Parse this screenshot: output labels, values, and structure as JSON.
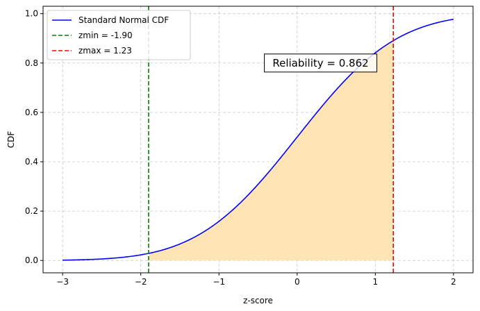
{
  "chart_data": {
    "type": "line",
    "title": "",
    "xlabel": "z-score",
    "ylabel": "CDF",
    "xlim": [
      -3.25,
      2.25
    ],
    "ylim": [
      -0.05,
      1.03
    ],
    "x_ticks": [
      -3,
      -2,
      -1,
      0,
      1,
      2
    ],
    "x_tick_labels": [
      "−3",
      "−2",
      "−1",
      "0",
      "1",
      "2"
    ],
    "y_ticks": [
      0.0,
      0.2,
      0.4,
      0.6,
      0.8,
      1.0
    ],
    "y_tick_labels": [
      "0.0",
      "0.2",
      "0.4",
      "0.6",
      "0.8",
      "1.0"
    ],
    "grid": true,
    "legend_position": "top-left",
    "series": [
      {
        "name": "Standard Normal CDF",
        "color": "#0000ff",
        "x": [
          -3.0,
          -2.5,
          -2.0,
          -1.9,
          -1.5,
          -1.0,
          -0.5,
          0.0,
          0.5,
          1.0,
          1.23,
          1.5,
          2.0
        ],
        "y": [
          0.0013,
          0.0062,
          0.0228,
          0.0287,
          0.0668,
          0.1587,
          0.3085,
          0.5,
          0.6915,
          0.8413,
          0.8907,
          0.9332,
          0.9772
        ]
      }
    ],
    "vlines": [
      {
        "name": "zmin = -1.90",
        "x": -1.9,
        "color": "#008000",
        "style": "dashed"
      },
      {
        "name": "zmax = 1.23",
        "x": 1.23,
        "color": "#ff0000",
        "style": "dashed"
      }
    ],
    "shaded_region": {
      "from": -1.9,
      "to": 1.23,
      "color": "#ffe4b5"
    },
    "annotation": {
      "text": "Reliability = 0.862",
      "x": 0.3,
      "y": 0.8
    }
  }
}
